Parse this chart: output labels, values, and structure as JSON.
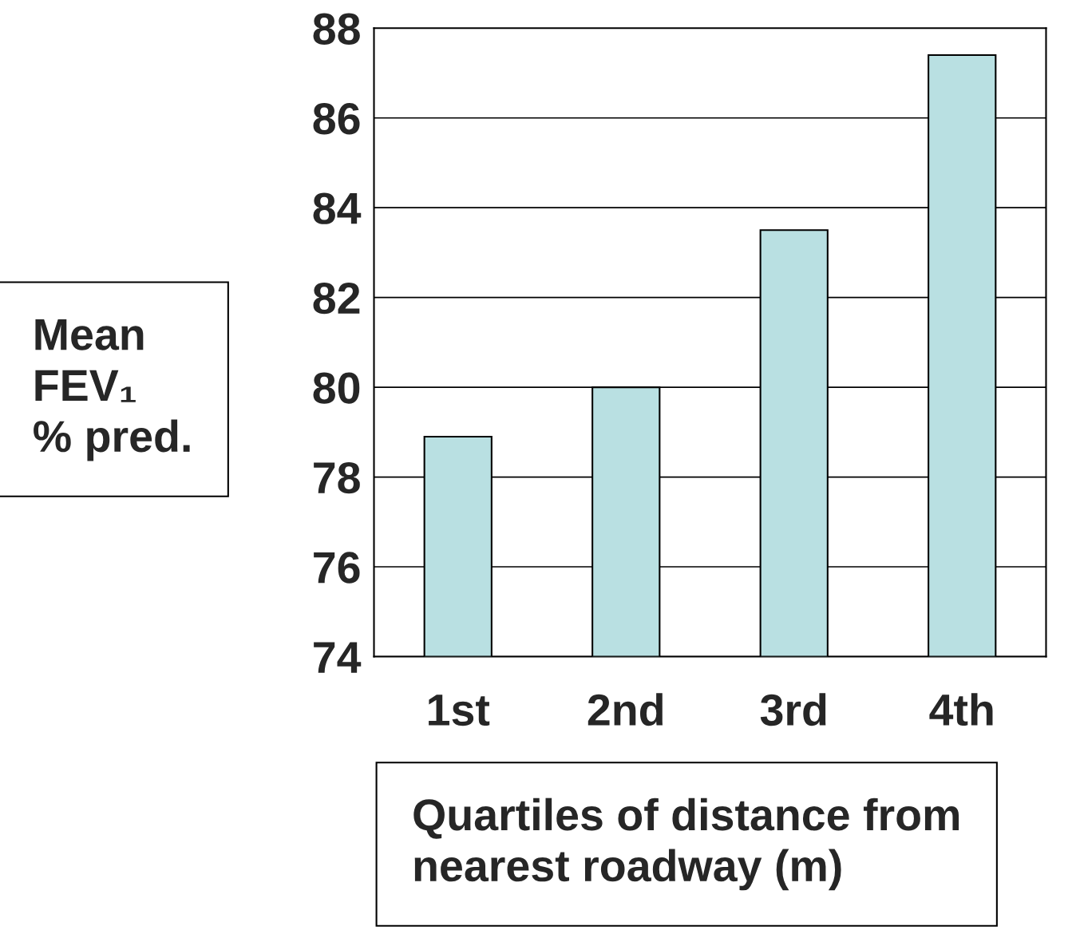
{
  "chart_data": {
    "type": "bar",
    "categories": [
      "1st",
      "2nd",
      "3rd",
      "4th"
    ],
    "values": [
      78.9,
      80.0,
      83.5,
      87.4
    ],
    "color": "#b9e0e2",
    "ylim": [
      74,
      88
    ],
    "yticks": [
      74,
      76,
      78,
      80,
      82,
      84,
      86,
      88
    ],
    "ylabel": "Mean\nFEV₁\n% pred.",
    "xlabel": "Quartiles of distance from\nnearest roadway (m)",
    "grid": "y"
  }
}
